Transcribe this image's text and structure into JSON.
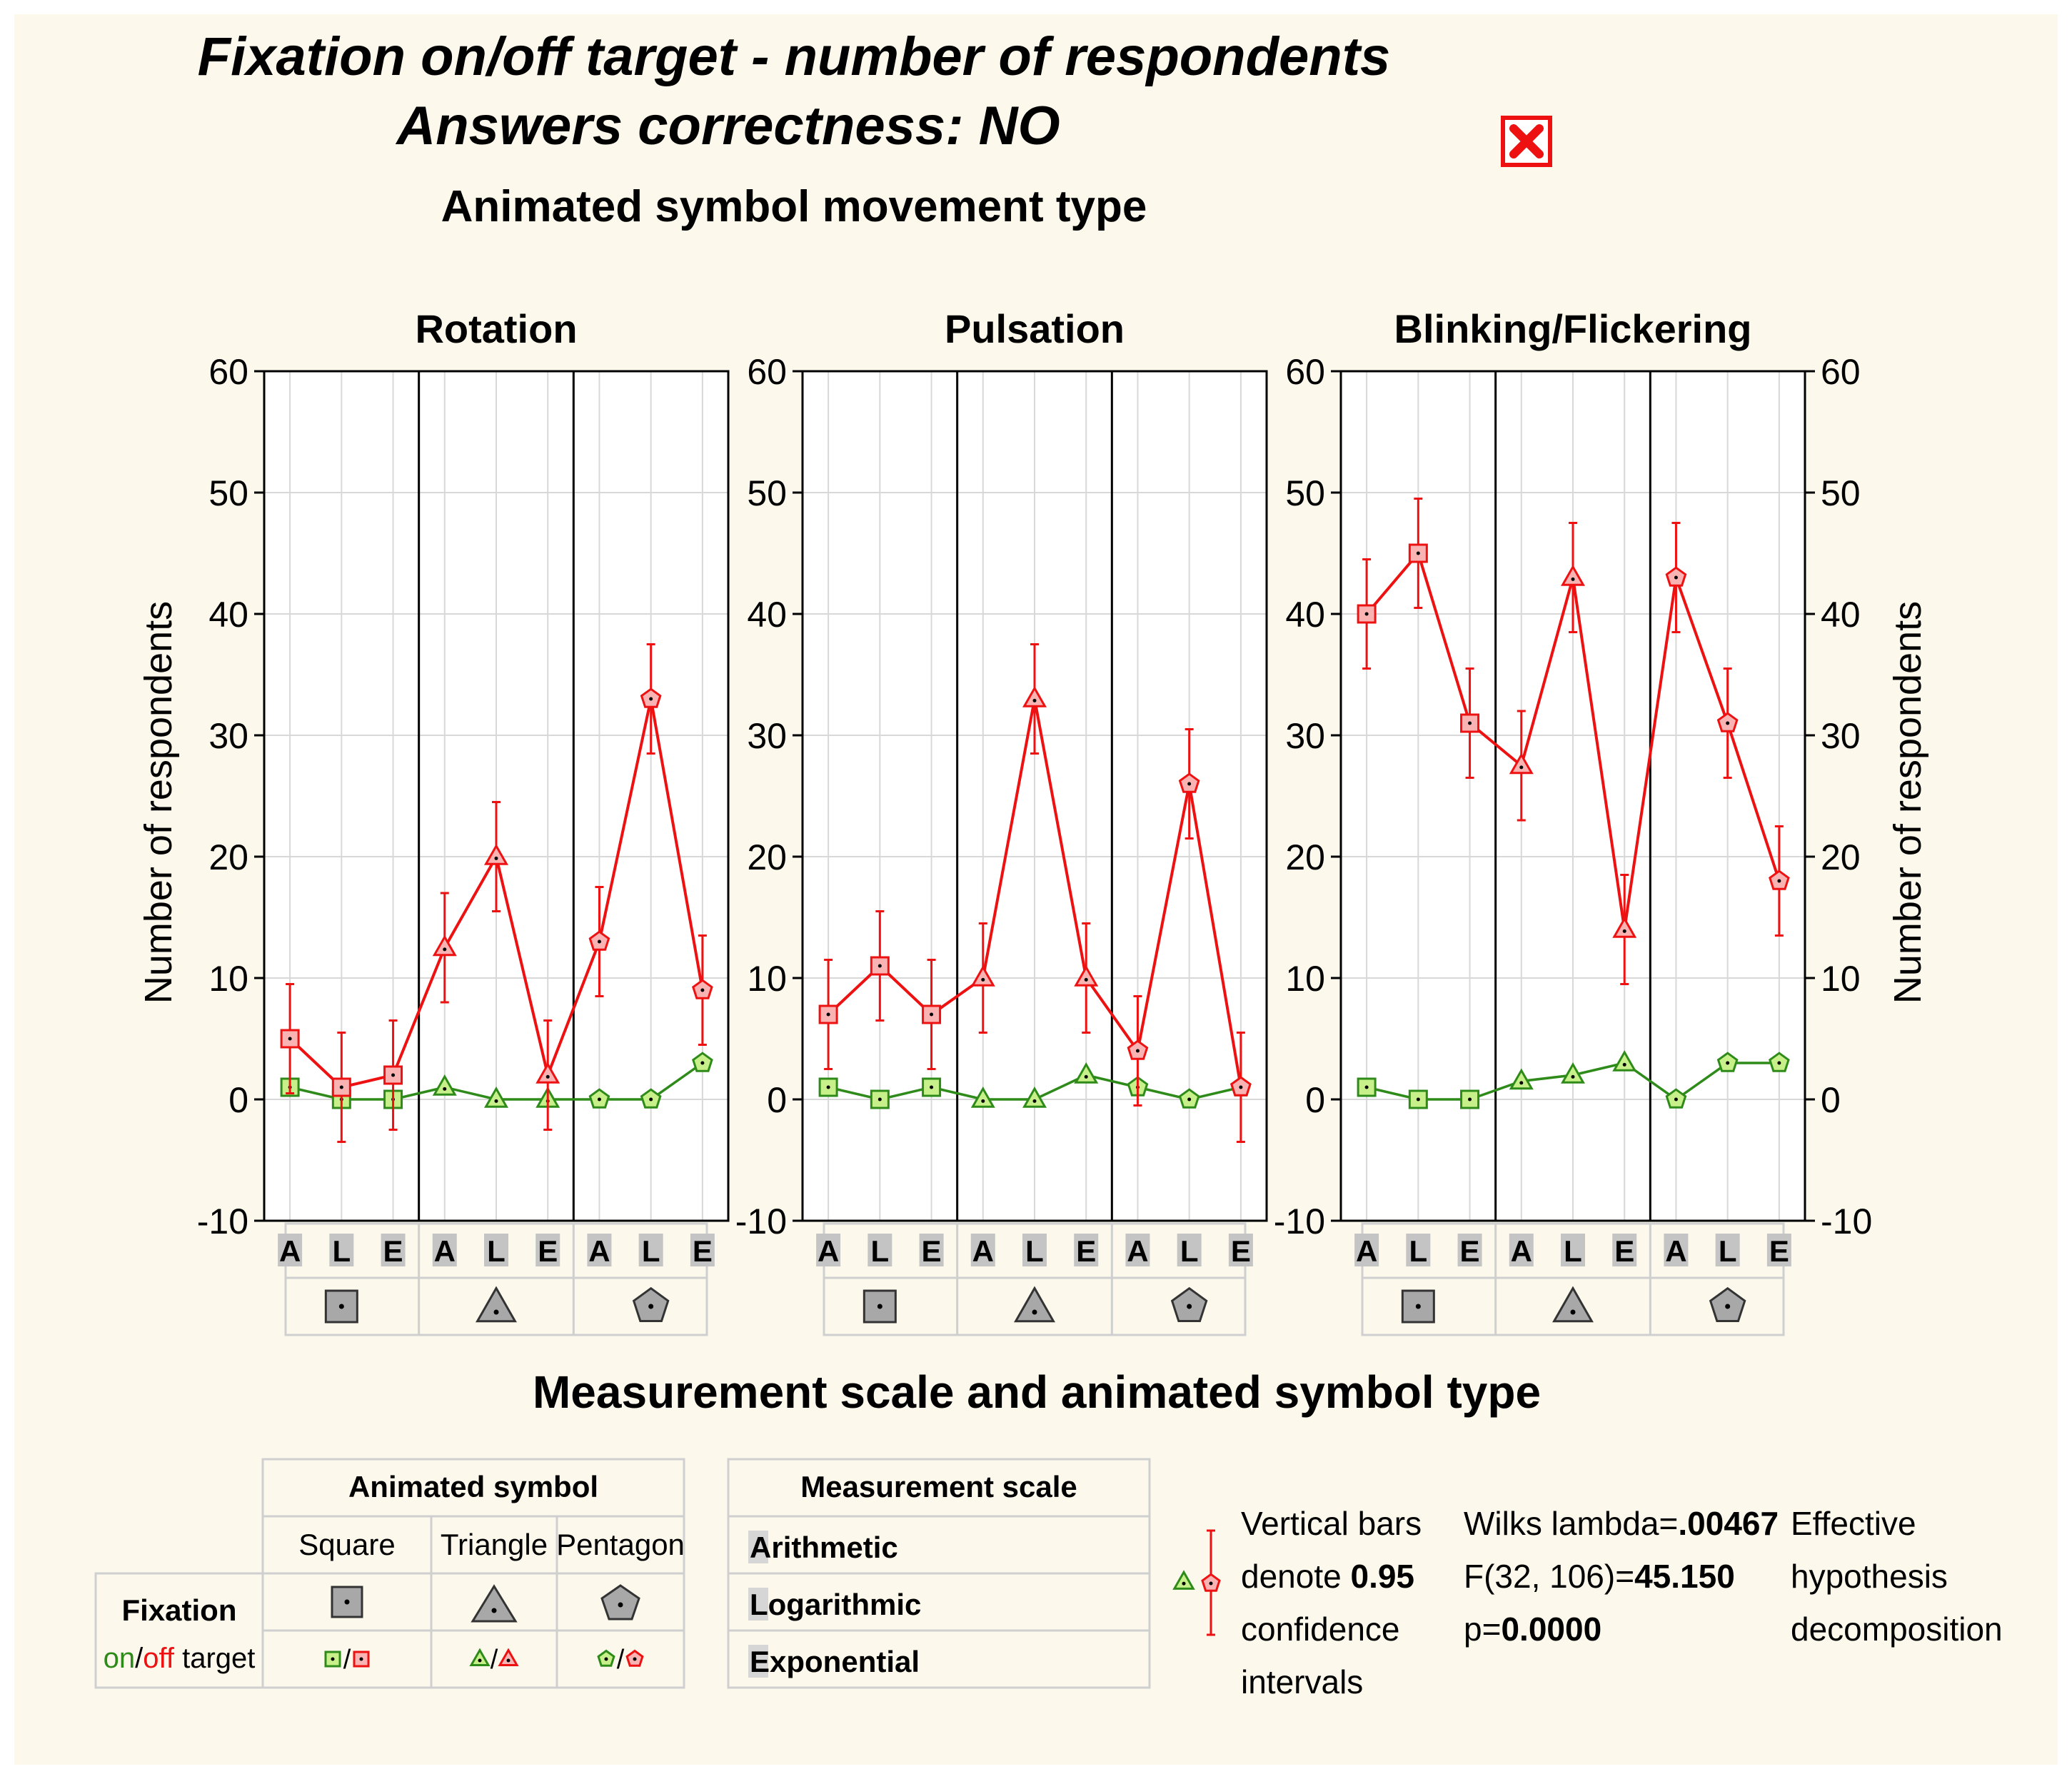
{
  "title": {
    "line1": "Fixation on/off target -  number of respondents",
    "line2": "Answers correctness: NO",
    "subtitle": "Animated symbol movement type"
  },
  "colors": {
    "on": "#2e8b1a",
    "off": "#ee1111",
    "on_fill": "#c8f08a",
    "off_fill": "#f9b3b3",
    "axis": "#000000",
    "grid": "#d8d8d8"
  },
  "chart_data": {
    "type": "line",
    "ylabel": "Number of respondents",
    "xlabel": "Measurement scale and animated symbol type",
    "ylim": [
      -10,
      60
    ],
    "yticks": [
      -10,
      0,
      10,
      20,
      30,
      40,
      50,
      60
    ],
    "categories": [
      "A",
      "L",
      "E",
      "A",
      "L",
      "E",
      "A",
      "L",
      "E"
    ],
    "symbols": [
      "square",
      "triangle",
      "pentagon"
    ],
    "panels": [
      {
        "title": "Rotation",
        "series": [
          {
            "name": "on target",
            "values": [
              1,
              0,
              0,
              1,
              0,
              0,
              0,
              0,
              3
            ]
          },
          {
            "name": "off target",
            "values": [
              5,
              1,
              2,
              12.5,
              20,
              2,
              13,
              33,
              9
            ],
            "ci": 4.5
          }
        ]
      },
      {
        "title": "Pulsation",
        "series": [
          {
            "name": "on target",
            "values": [
              1,
              0,
              1,
              0,
              0,
              2,
              1,
              0,
              1
            ]
          },
          {
            "name": "off target",
            "values": [
              7,
              11,
              7,
              10,
              33,
              10,
              4,
              26,
              1
            ],
            "ci": 4.5
          }
        ]
      },
      {
        "title": "Blinking/Flickering",
        "series": [
          {
            "name": "on target",
            "values": [
              1,
              0,
              0,
              1.5,
              2,
              3,
              0,
              3,
              3
            ]
          },
          {
            "name": "off target",
            "values": [
              40,
              45,
              31,
              27.5,
              43,
              14,
              43,
              31,
              18
            ],
            "ci": 4.5
          }
        ]
      }
    ]
  },
  "legend": {
    "symbol_header": "Animated symbol",
    "symbols": [
      "Square",
      "Triangle",
      "Pentagon"
    ],
    "fixation_label": "Fixation",
    "on_word": "on",
    "slash": "/",
    "off_word": "off",
    "target_word": " target",
    "scale_header": "Measurement scale",
    "scales": [
      {
        "initial": "A",
        "rest": "rithmetic"
      },
      {
        "initial": "L",
        "rest": "ogarithmic"
      },
      {
        "initial": "E",
        "rest": "xponential"
      }
    ],
    "ci_text": [
      "Vertical bars",
      "denote ",
      "0.95",
      "confidence",
      "intervals"
    ],
    "stats": [
      {
        "label": "Wilks lambda=",
        "value": ".00467"
      },
      {
        "label": "F(32, 106)=",
        "value": "45.150"
      },
      {
        "label": "p=",
        "value": "0.0000"
      }
    ],
    "effect_text": [
      "Effective",
      "hypothesis",
      "decomposition"
    ]
  }
}
